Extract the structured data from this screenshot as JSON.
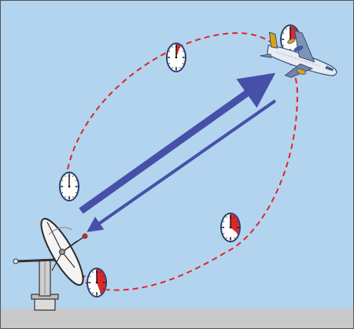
{
  "diagram": {
    "subject": "radar ranging",
    "palette": {
      "sky": "#b3d4ef",
      "ground": "#c9c9c9",
      "border": "#555555",
      "orbit": "#e0262a",
      "pulse": "#4750a8",
      "clock_face": "#ffffff",
      "clock_fill": "#e0262a",
      "clock_rim": "#2a3f6e"
    },
    "clocks": [
      {
        "id": "transmit",
        "elapsed_fraction": 0.0
      },
      {
        "id": "outbound-mid",
        "elapsed_fraction": 0.08
      },
      {
        "id": "at-aircraft",
        "elapsed_fraction": 0.25
      },
      {
        "id": "return-mid",
        "elapsed_fraction": 0.33
      },
      {
        "id": "received",
        "elapsed_fraction": 0.42
      }
    ],
    "icons": [
      "radar-dish-icon",
      "airplane-icon",
      "clock-icon"
    ]
  }
}
